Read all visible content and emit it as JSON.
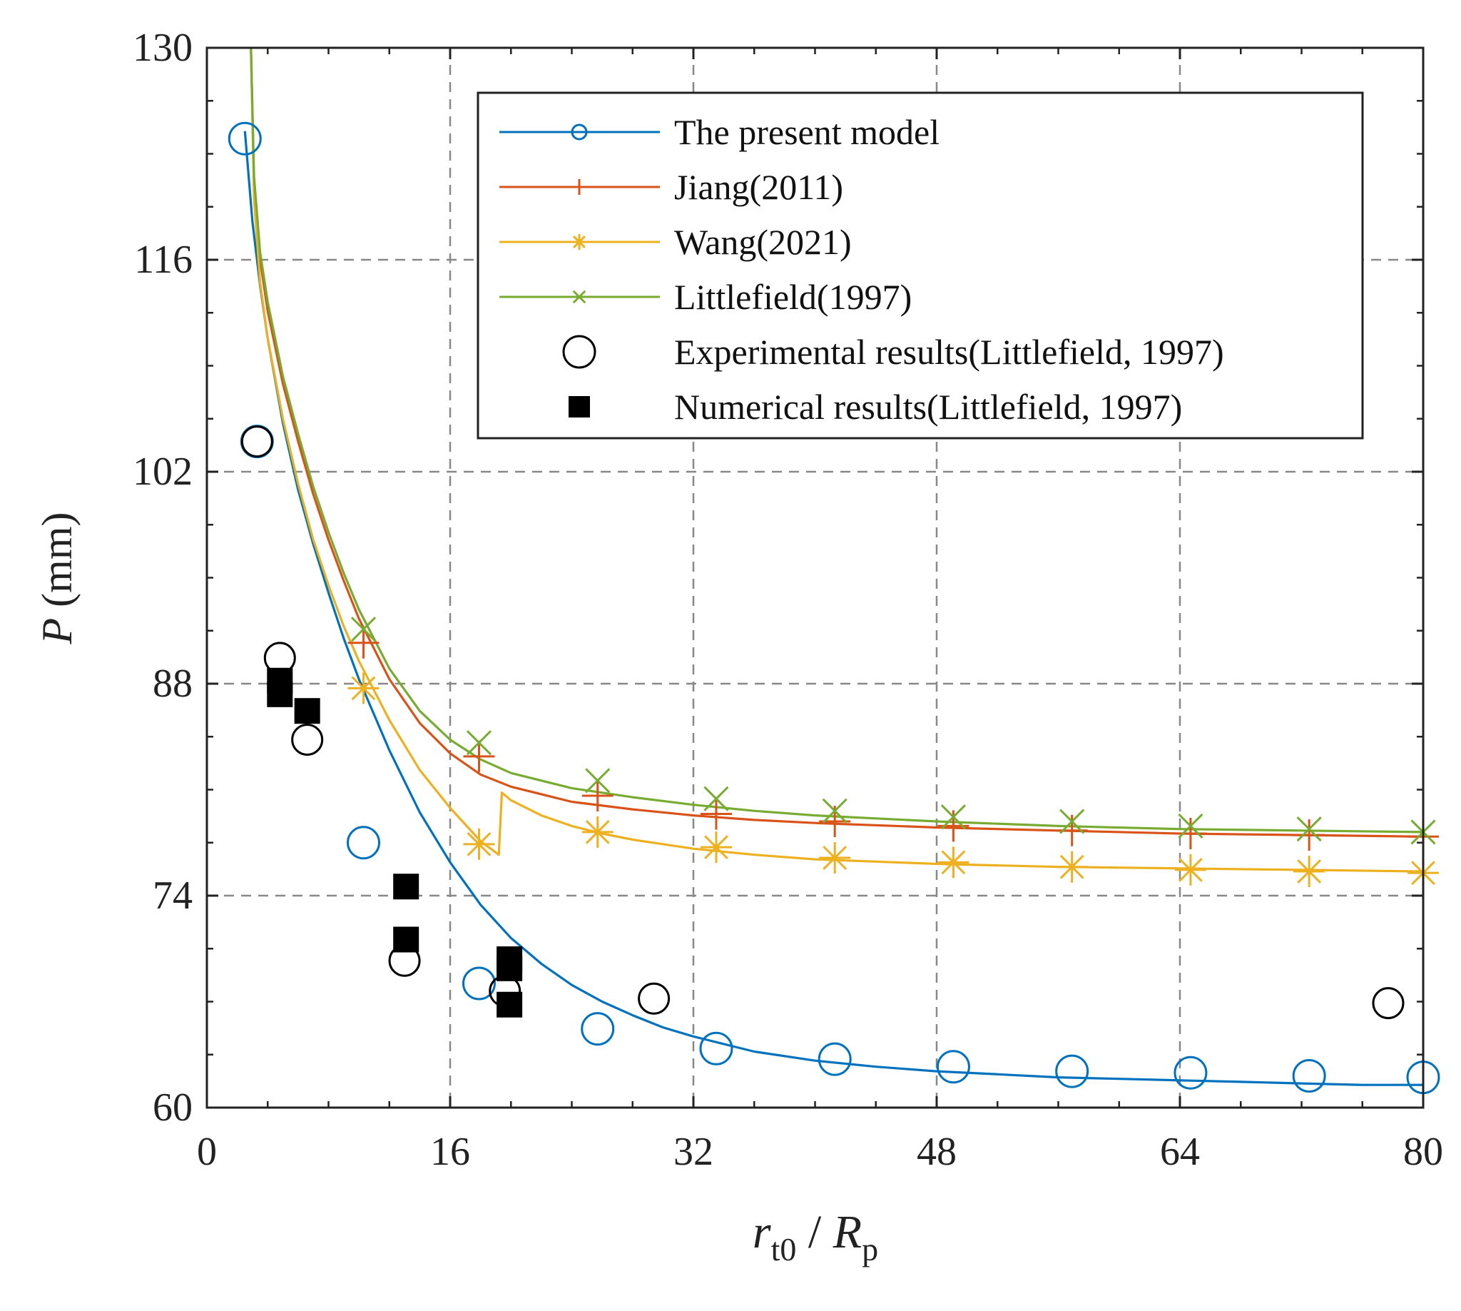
{
  "chart_data": {
    "type": "line",
    "x_axis": {
      "label_main": "r",
      "label_main_sub": "t0",
      "label_sep": " / ",
      "label_second": "R",
      "label_second_sub": "p",
      "range": [
        0,
        80
      ],
      "ticks": [
        0,
        16,
        32,
        48,
        64,
        80
      ]
    },
    "y_axis": {
      "label_var": "P",
      "label_unit": " (mm)",
      "range": [
        60,
        130
      ],
      "ticks": [
        60,
        74,
        88,
        102,
        116,
        130
      ]
    },
    "grid": true,
    "legend": {
      "position": "top-right"
    },
    "series": [
      {
        "name": "The present model",
        "color": "#0072BD",
        "marker": "circle",
        "line": [
          [
            2.5,
            124.5
          ],
          [
            3,
            118.5
          ],
          [
            3.5,
            114.3
          ],
          [
            4,
            110.8
          ],
          [
            5,
            105.2
          ],
          [
            6,
            100.8
          ],
          [
            7,
            97.2
          ],
          [
            8,
            94.0
          ],
          [
            9,
            91.0
          ],
          [
            10,
            88.3
          ],
          [
            12,
            83.6
          ],
          [
            14,
            79.5
          ],
          [
            16,
            76.2
          ],
          [
            18,
            73.4
          ],
          [
            20,
            71.2
          ],
          [
            22,
            69.5
          ],
          [
            24,
            68.1
          ],
          [
            26,
            67.0
          ],
          [
            28,
            66.1
          ],
          [
            30,
            65.3
          ],
          [
            32,
            64.7
          ],
          [
            36,
            63.7
          ],
          [
            40,
            63.1
          ],
          [
            44,
            62.7
          ],
          [
            48,
            62.4
          ],
          [
            52,
            62.2
          ],
          [
            56,
            62.0
          ],
          [
            60,
            61.9
          ],
          [
            64,
            61.8
          ],
          [
            68,
            61.7
          ],
          [
            72,
            61.6
          ],
          [
            76,
            61.5
          ],
          [
            80,
            61.5
          ]
        ],
        "markers": [
          [
            2.5,
            124.0
          ],
          [
            3.3,
            104.0
          ],
          [
            10.3,
            77.5
          ],
          [
            17.9,
            68.2
          ],
          [
            25.7,
            65.2
          ],
          [
            33.5,
            63.9
          ],
          [
            41.3,
            63.2
          ],
          [
            49.1,
            62.7
          ],
          [
            56.9,
            62.4
          ],
          [
            64.7,
            62.3
          ],
          [
            72.5,
            62.1
          ],
          [
            80.0,
            62.0
          ]
        ]
      },
      {
        "name": "Jiang(2011)",
        "color": "#D95319",
        "marker": "plus",
        "line": [
          [
            2.9,
            130
          ],
          [
            3.1,
            121.0
          ],
          [
            3.5,
            116.0
          ],
          [
            4,
            112.6
          ],
          [
            5,
            107.8
          ],
          [
            6,
            104.0
          ],
          [
            7,
            100.5
          ],
          [
            8,
            97.5
          ],
          [
            9,
            94.8
          ],
          [
            10,
            92.3
          ],
          [
            12,
            88.3
          ],
          [
            14,
            85.4
          ],
          [
            16,
            83.4
          ],
          [
            18,
            82.0
          ],
          [
            20,
            81.2
          ],
          [
            24,
            80.2
          ],
          [
            28,
            79.7
          ],
          [
            32,
            79.3
          ],
          [
            36,
            79.0
          ],
          [
            40,
            78.8
          ],
          [
            48,
            78.5
          ],
          [
            56,
            78.3
          ],
          [
            64,
            78.1
          ],
          [
            72,
            78.0
          ],
          [
            80,
            77.9
          ]
        ],
        "markers": [
          [
            10.3,
            90.7
          ],
          [
            17.9,
            83.2
          ],
          [
            25.7,
            80.6
          ],
          [
            33.5,
            79.4
          ],
          [
            41.3,
            78.9
          ],
          [
            49.1,
            78.6
          ],
          [
            56.9,
            78.3
          ],
          [
            64.7,
            78.1
          ],
          [
            72.5,
            78.0
          ],
          [
            80.0,
            77.9
          ]
        ]
      },
      {
        "name": "Wang(2021)",
        "color": "#EDB120",
        "marker": "asterisk",
        "line": [
          [
            2.9,
            130
          ],
          [
            3.1,
            120.0
          ],
          [
            3.5,
            114.5
          ],
          [
            4,
            110.8
          ],
          [
            5,
            105.5
          ],
          [
            6,
            101.2
          ],
          [
            7,
            97.5
          ],
          [
            8,
            94.5
          ],
          [
            9,
            91.8
          ],
          [
            10,
            89.5
          ],
          [
            12,
            85.6
          ],
          [
            14,
            82.3
          ],
          [
            16,
            79.8
          ],
          [
            18,
            77.6
          ],
          [
            19.2,
            76.7
          ],
          [
            19.4,
            80.8
          ],
          [
            20,
            80.3
          ],
          [
            22,
            79.3
          ],
          [
            24,
            78.6
          ],
          [
            26,
            78.1
          ],
          [
            28,
            77.7
          ],
          [
            32,
            77.1
          ],
          [
            36,
            76.7
          ],
          [
            40,
            76.4
          ],
          [
            48,
            76.1
          ],
          [
            56,
            75.9
          ],
          [
            64,
            75.8
          ],
          [
            72,
            75.7
          ],
          [
            80,
            75.6
          ]
        ],
        "markers": [
          [
            10.3,
            87.7
          ],
          [
            17.9,
            77.4
          ],
          [
            25.7,
            78.2
          ],
          [
            33.5,
            77.2
          ],
          [
            41.3,
            76.5
          ],
          [
            49.1,
            76.2
          ],
          [
            56.9,
            75.9
          ],
          [
            64.7,
            75.7
          ],
          [
            72.5,
            75.6
          ],
          [
            80.0,
            75.5
          ]
        ]
      },
      {
        "name": "Littlefield(1997)",
        "color": "#77AC30",
        "marker": "x",
        "line": [
          [
            2.9,
            130
          ],
          [
            3.1,
            121.5
          ],
          [
            3.5,
            116.5
          ],
          [
            4,
            113.2
          ],
          [
            5,
            108.3
          ],
          [
            6,
            104.5
          ],
          [
            7,
            101.0
          ],
          [
            8,
            98.0
          ],
          [
            9,
            95.3
          ],
          [
            10,
            92.9
          ],
          [
            12,
            89.0
          ],
          [
            14,
            86.2
          ],
          [
            16,
            84.3
          ],
          [
            18,
            83.0
          ],
          [
            20,
            82.1
          ],
          [
            24,
            81.1
          ],
          [
            28,
            80.5
          ],
          [
            32,
            80.0
          ],
          [
            36,
            79.6
          ],
          [
            40,
            79.3
          ],
          [
            48,
            78.9
          ],
          [
            56,
            78.6
          ],
          [
            64,
            78.4
          ],
          [
            72,
            78.3
          ],
          [
            80,
            78.2
          ]
        ],
        "markers": [
          [
            10.3,
            91.6
          ],
          [
            17.9,
            84.1
          ],
          [
            25.7,
            81.6
          ],
          [
            33.5,
            80.4
          ],
          [
            41.3,
            79.6
          ],
          [
            49.1,
            79.2
          ],
          [
            56.9,
            78.9
          ],
          [
            64.7,
            78.6
          ],
          [
            72.5,
            78.4
          ],
          [
            80.0,
            78.2
          ]
        ]
      },
      {
        "name": "Experimental results(Littlefield, 1997)",
        "color": "#000000",
        "marker": "open-circle",
        "points": [
          [
            3.3,
            104.0
          ],
          [
            4.8,
            89.7
          ],
          [
            6.6,
            84.3
          ],
          [
            13.0,
            69.7
          ],
          [
            19.6,
            67.7
          ],
          [
            29.4,
            67.2
          ],
          [
            77.7,
            66.9
          ]
        ]
      },
      {
        "name": "Numerical results(Littlefield, 1997)",
        "color": "#000000",
        "marker": "filled-square",
        "points": [
          [
            4.8,
            88.2
          ],
          [
            4.8,
            87.3
          ],
          [
            6.6,
            86.2
          ],
          [
            13.1,
            74.6
          ],
          [
            13.1,
            71.1
          ],
          [
            19.9,
            69.8
          ],
          [
            19.9,
            69.2
          ],
          [
            19.9,
            66.8
          ]
        ]
      }
    ]
  }
}
